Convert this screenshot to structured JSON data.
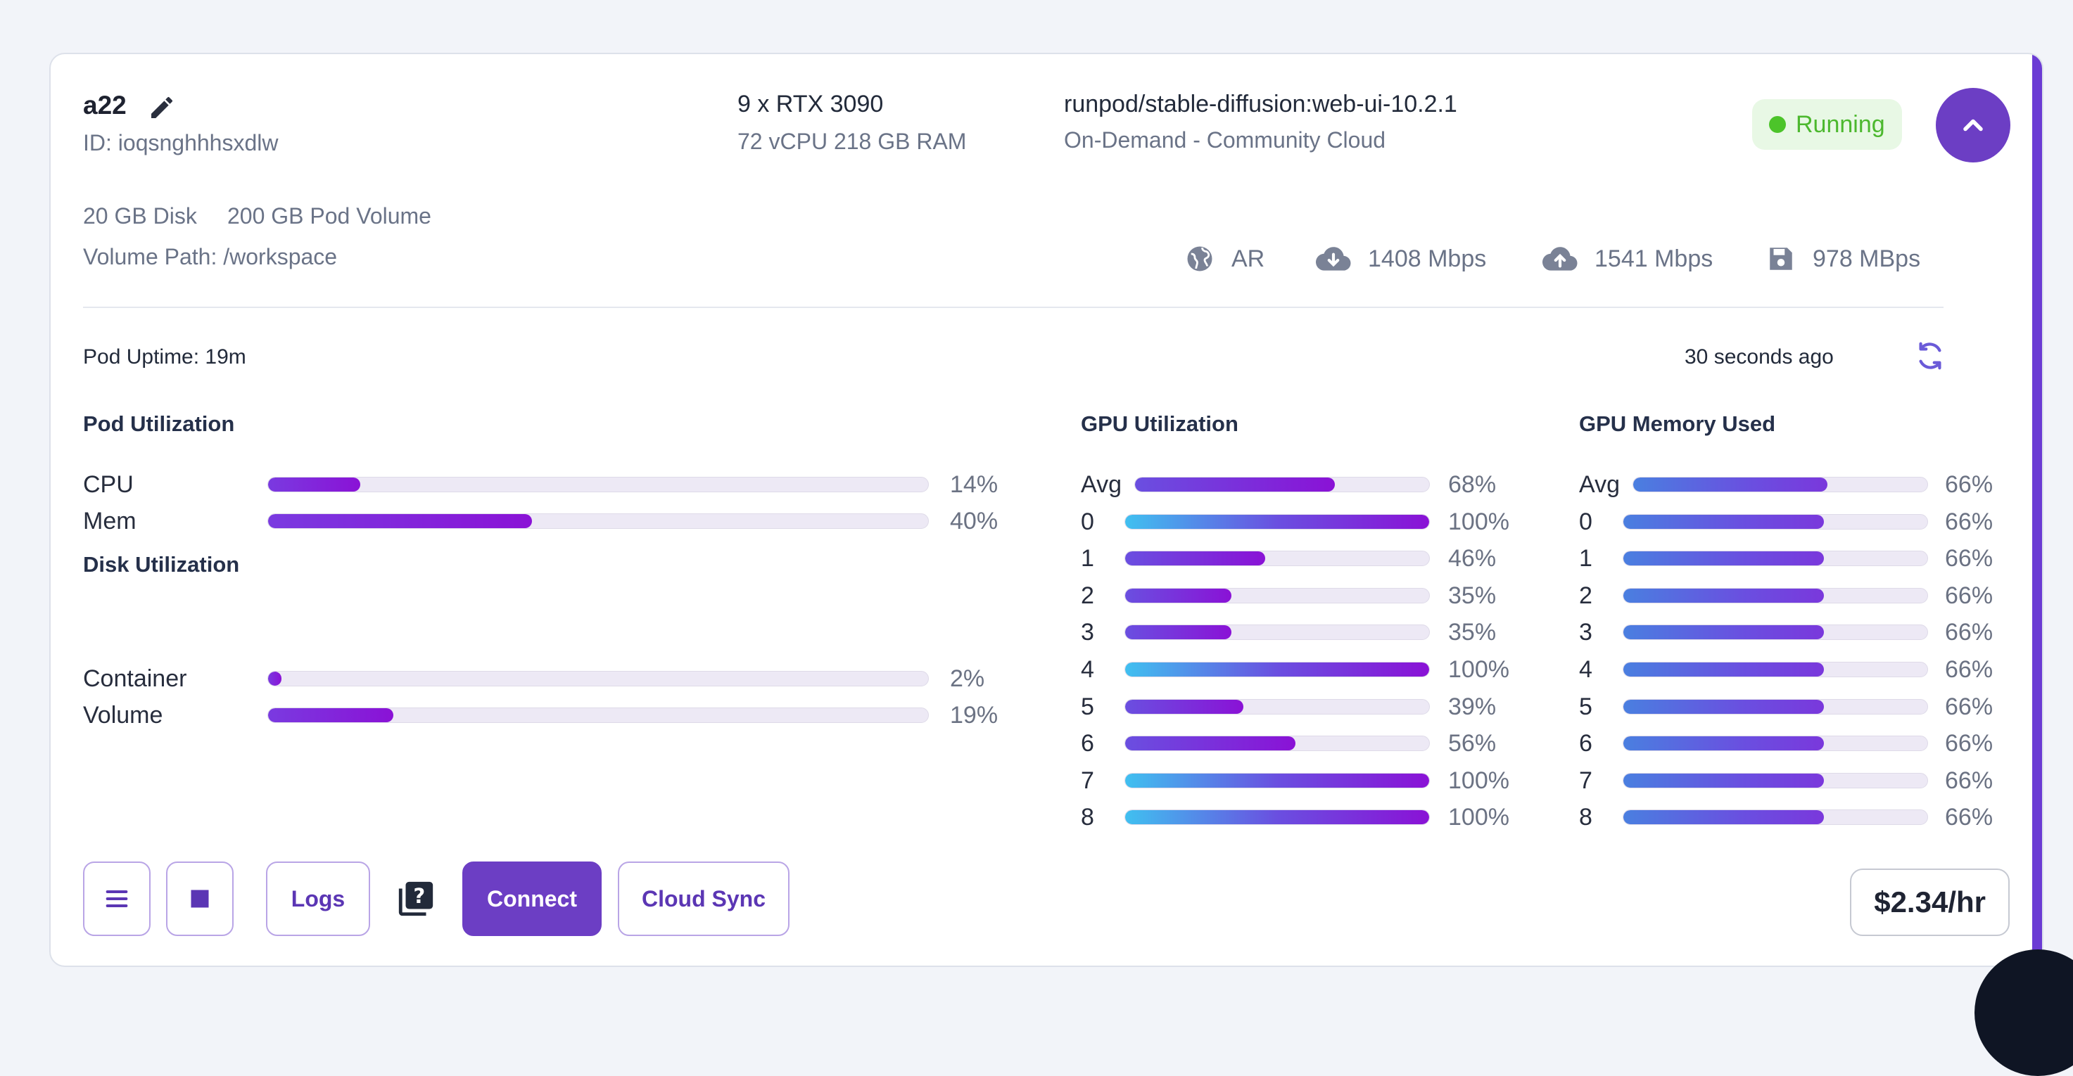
{
  "pod": {
    "name": "a22",
    "id_text": "ID: ioqsnghhhsxdlw",
    "gpu_text": "9 x RTX 3090",
    "spec_text": "72 vCPU 218 GB RAM",
    "image_text": "runpod/stable-diffusion:web-ui-10.2.1",
    "cloud_text": "On-Demand - Community Cloud",
    "status": "Running",
    "disk_text": "20 GB Disk",
    "volume_text": "200 GB Pod Volume",
    "volume_path": "Volume Path: /workspace"
  },
  "stats": {
    "region": "AR",
    "download": "1408 Mbps",
    "upload": "1541 Mbps",
    "disk_speed": "978 MBps"
  },
  "uptime": {
    "label": "Pod Uptime: 19m",
    "updated": "30 seconds ago"
  },
  "pod_utilization": {
    "title": "Pod Utilization",
    "rows": [
      {
        "label": "CPU",
        "value": 14,
        "text": "14%"
      },
      {
        "label": "Mem",
        "value": 40,
        "text": "40%"
      }
    ]
  },
  "disk_utilization": {
    "title": "Disk Utilization",
    "rows": [
      {
        "label": "Container",
        "value": 2,
        "text": "2%"
      },
      {
        "label": "Volume",
        "value": 19,
        "text": "19%"
      }
    ]
  },
  "gpu_utilization": {
    "title": "GPU Utilization",
    "rows": [
      {
        "label": "Avg",
        "value": 68,
        "text": "68%"
      },
      {
        "label": "0",
        "value": 100,
        "text": "100%"
      },
      {
        "label": "1",
        "value": 46,
        "text": "46%"
      },
      {
        "label": "2",
        "value": 35,
        "text": "35%"
      },
      {
        "label": "3",
        "value": 35,
        "text": "35%"
      },
      {
        "label": "4",
        "value": 100,
        "text": "100%"
      },
      {
        "label": "5",
        "value": 39,
        "text": "39%"
      },
      {
        "label": "6",
        "value": 56,
        "text": "56%"
      },
      {
        "label": "7",
        "value": 100,
        "text": "100%"
      },
      {
        "label": "8",
        "value": 100,
        "text": "100%"
      }
    ]
  },
  "gpu_memory": {
    "title": "GPU Memory Used",
    "rows": [
      {
        "label": "Avg",
        "value": 66,
        "text": "66%"
      },
      {
        "label": "0",
        "value": 66,
        "text": "66%"
      },
      {
        "label": "1",
        "value": 66,
        "text": "66%"
      },
      {
        "label": "2",
        "value": 66,
        "text": "66%"
      },
      {
        "label": "3",
        "value": 66,
        "text": "66%"
      },
      {
        "label": "4",
        "value": 66,
        "text": "66%"
      },
      {
        "label": "5",
        "value": 66,
        "text": "66%"
      },
      {
        "label": "6",
        "value": 66,
        "text": "66%"
      },
      {
        "label": "7",
        "value": 66,
        "text": "66%"
      },
      {
        "label": "8",
        "value": 66,
        "text": "66%"
      }
    ]
  },
  "actions": {
    "logs": "Logs",
    "connect": "Connect",
    "cloud_sync": "Cloud Sync"
  },
  "price": "$2.34/hr",
  "colors": {
    "accent": "#6c3ec4",
    "running_bg": "#e8f8e5",
    "running_text": "#4cb82e",
    "bar_purple": "#8a12d6",
    "bar_blue": "#4a7fe0",
    "bar_cyan": "#40c0f0"
  },
  "icons": {
    "edit": "pencil-icon",
    "collapse": "chevron-up-icon",
    "region": "globe-icon",
    "download": "cloud-download-icon",
    "upload": "cloud-upload-icon",
    "disk": "floppy-disk-icon",
    "refresh": "refresh-icon",
    "menu": "hamburger-menu-icon",
    "stop": "stop-icon",
    "help": "help-docs-icon"
  }
}
